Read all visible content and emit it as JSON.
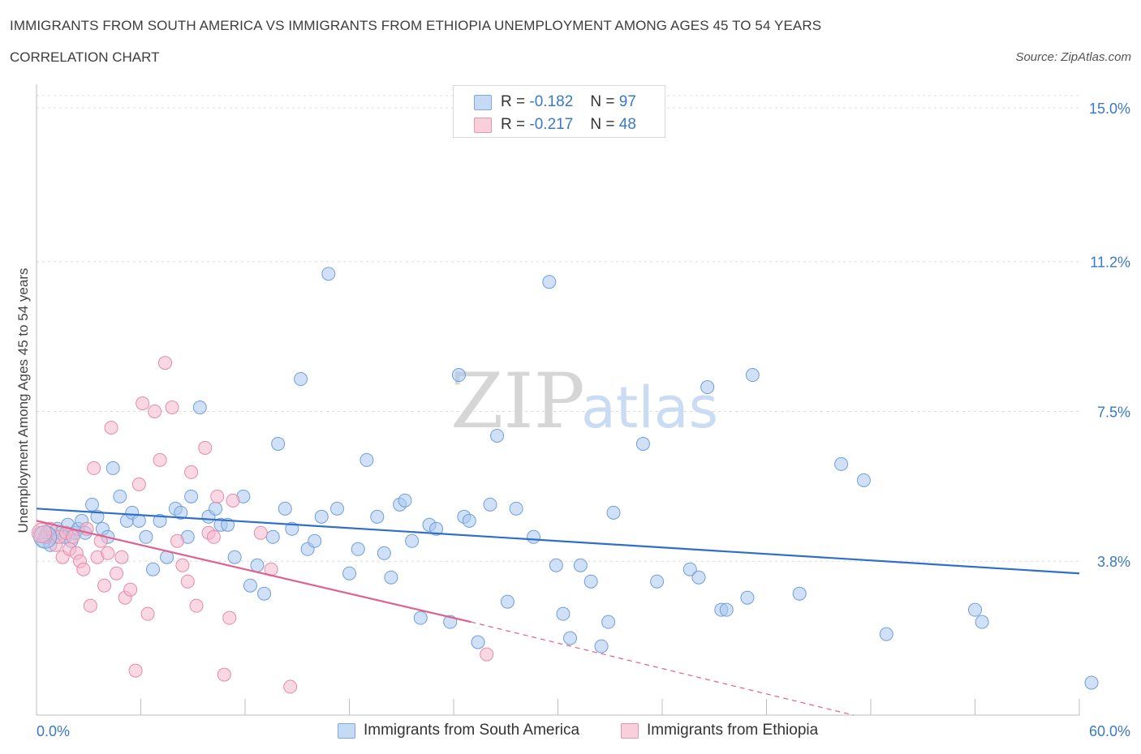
{
  "header": {
    "title": "IMMIGRANTS FROM SOUTH AMERICA VS IMMIGRANTS FROM ETHIOPIA UNEMPLOYMENT AMONG AGES 45 TO 54 YEARS",
    "subtitle": "CORRELATION CHART",
    "source": "Source: ZipAtlas.com"
  },
  "legend": {
    "rows": [
      {
        "r_label": "R =",
        "r_value": "-0.182",
        "n_label": "N =",
        "n_value": "97",
        "color": "#a9c8f0"
      },
      {
        "r_label": "R =",
        "r_value": "-0.217",
        "n_label": "N =",
        "n_value": "48",
        "color": "#f6b8cc"
      }
    ]
  },
  "bottom_legend": {
    "south_america": "Immigrants from South America",
    "ethiopia": "Immigrants from Ethiopia"
  },
  "chart_data": {
    "type": "scatter",
    "ylabel": "Unemployment Among Ages 45 to 54 years",
    "xlabel": "",
    "x_tick_labels": [
      "0.0%",
      "60.0%"
    ],
    "y_tick_labels": [
      "15.0%",
      "11.2%",
      "7.5%",
      "3.8%"
    ],
    "y_ticks": [
      15.0,
      11.2,
      7.5,
      3.8
    ],
    "xlim": [
      0,
      60
    ],
    "ylim": [
      0,
      15.3
    ],
    "grid": true,
    "legend_position": "top-center",
    "watermark": "ZIPatlas",
    "series": [
      {
        "name": "Immigrants from South America",
        "color": "#a9c8f0",
        "stroke": "#6f9fd8",
        "trend": {
          "x0": 0,
          "y0": 5.1,
          "x1": 60,
          "y1": 3.5,
          "color": "#2f6fcb"
        },
        "points": [
          [
            0.4,
            4.3
          ],
          [
            0.6,
            4.5
          ],
          [
            0.8,
            4.2
          ],
          [
            1.0,
            4.4
          ],
          [
            1.2,
            4.6
          ],
          [
            1.4,
            4.5
          ],
          [
            1.6,
            4.4
          ],
          [
            1.8,
            4.7
          ],
          [
            2.0,
            4.3
          ],
          [
            2.2,
            4.5
          ],
          [
            2.4,
            4.6
          ],
          [
            2.6,
            4.8
          ],
          [
            2.8,
            4.5
          ],
          [
            3.2,
            5.2
          ],
          [
            3.5,
            4.9
          ],
          [
            3.8,
            4.6
          ],
          [
            4.1,
            4.4
          ],
          [
            4.4,
            6.1
          ],
          [
            4.8,
            5.4
          ],
          [
            5.2,
            4.8
          ],
          [
            5.5,
            5.0
          ],
          [
            5.9,
            4.8
          ],
          [
            6.3,
            4.4
          ],
          [
            6.7,
            3.6
          ],
          [
            7.1,
            4.8
          ],
          [
            7.5,
            3.9
          ],
          [
            8.0,
            5.1
          ],
          [
            8.3,
            5.0
          ],
          [
            8.7,
            4.4
          ],
          [
            8.9,
            5.4
          ],
          [
            9.4,
            7.6
          ],
          [
            9.9,
            4.9
          ],
          [
            10.3,
            5.1
          ],
          [
            10.6,
            4.7
          ],
          [
            11.0,
            4.7
          ],
          [
            11.4,
            3.9
          ],
          [
            11.9,
            5.4
          ],
          [
            12.3,
            3.2
          ],
          [
            12.7,
            3.7
          ],
          [
            13.1,
            3.0
          ],
          [
            13.6,
            4.4
          ],
          [
            13.9,
            6.7
          ],
          [
            14.3,
            5.1
          ],
          [
            14.7,
            4.6
          ],
          [
            15.2,
            8.3
          ],
          [
            15.6,
            4.1
          ],
          [
            16.0,
            4.3
          ],
          [
            16.4,
            4.9
          ],
          [
            16.8,
            10.9
          ],
          [
            17.3,
            5.1
          ],
          [
            18.0,
            3.5
          ],
          [
            18.5,
            4.1
          ],
          [
            19.0,
            6.3
          ],
          [
            19.6,
            4.9
          ],
          [
            20.0,
            4.0
          ],
          [
            20.4,
            3.4
          ],
          [
            20.9,
            5.2
          ],
          [
            21.2,
            5.3
          ],
          [
            21.6,
            4.3
          ],
          [
            22.1,
            2.4
          ],
          [
            22.6,
            4.7
          ],
          [
            23.0,
            4.6
          ],
          [
            23.8,
            2.3
          ],
          [
            24.3,
            8.4
          ],
          [
            24.6,
            4.9
          ],
          [
            24.9,
            4.8
          ],
          [
            25.4,
            1.8
          ],
          [
            26.1,
            5.2
          ],
          [
            26.5,
            6.9
          ],
          [
            27.1,
            2.8
          ],
          [
            27.6,
            5.1
          ],
          [
            28.6,
            4.4
          ],
          [
            29.5,
            10.7
          ],
          [
            29.9,
            3.7
          ],
          [
            30.3,
            2.5
          ],
          [
            30.7,
            1.9
          ],
          [
            31.3,
            3.7
          ],
          [
            31.9,
            3.3
          ],
          [
            32.5,
            1.7
          ],
          [
            32.9,
            2.3
          ],
          [
            33.2,
            5.0
          ],
          [
            34.9,
            6.7
          ],
          [
            35.7,
            3.3
          ],
          [
            37.6,
            3.6
          ],
          [
            38.1,
            3.4
          ],
          [
            38.6,
            8.1
          ],
          [
            39.4,
            2.6
          ],
          [
            39.7,
            2.6
          ],
          [
            40.9,
            2.9
          ],
          [
            41.2,
            8.4
          ],
          [
            43.9,
            3.0
          ],
          [
            46.3,
            6.2
          ],
          [
            47.6,
            5.8
          ],
          [
            48.9,
            2.0
          ],
          [
            54.0,
            2.6
          ],
          [
            54.4,
            2.3
          ],
          [
            60.7,
            0.8
          ]
        ]
      },
      {
        "name": "Immigrants from Ethiopia",
        "color": "#f6b8cc",
        "stroke": "#e58aa8",
        "trend": {
          "x0": 0,
          "y0": 4.8,
          "x1": 25,
          "y1": 2.3,
          "color": "#e0608e"
        },
        "trend_dashed": {
          "x0": 25,
          "y0": 2.3,
          "x1": 47,
          "y1": 0.0
        },
        "points": [
          [
            0.2,
            4.5
          ],
          [
            0.5,
            4.4
          ],
          [
            0.8,
            4.6
          ],
          [
            1.1,
            4.2
          ],
          [
            1.3,
            4.4
          ],
          [
            1.5,
            3.9
          ],
          [
            1.7,
            4.5
          ],
          [
            1.9,
            4.1
          ],
          [
            2.1,
            4.4
          ],
          [
            2.3,
            4.0
          ],
          [
            2.5,
            3.8
          ],
          [
            2.7,
            3.6
          ],
          [
            2.9,
            4.6
          ],
          [
            3.1,
            2.7
          ],
          [
            3.3,
            6.1
          ],
          [
            3.5,
            3.9
          ],
          [
            3.7,
            4.3
          ],
          [
            3.9,
            3.2
          ],
          [
            4.1,
            4.0
          ],
          [
            4.3,
            7.1
          ],
          [
            4.6,
            3.5
          ],
          [
            4.9,
            3.9
          ],
          [
            5.1,
            2.9
          ],
          [
            5.4,
            3.1
          ],
          [
            5.7,
            1.1
          ],
          [
            5.9,
            5.7
          ],
          [
            6.1,
            7.7
          ],
          [
            6.4,
            2.5
          ],
          [
            6.8,
            7.5
          ],
          [
            7.1,
            6.3
          ],
          [
            7.4,
            8.7
          ],
          [
            7.8,
            7.6
          ],
          [
            8.1,
            4.3
          ],
          [
            8.4,
            3.7
          ],
          [
            8.7,
            3.3
          ],
          [
            8.9,
            6.0
          ],
          [
            9.2,
            2.7
          ],
          [
            9.7,
            6.6
          ],
          [
            9.9,
            4.5
          ],
          [
            10.2,
            4.4
          ],
          [
            10.4,
            5.4
          ],
          [
            10.8,
            1.0
          ],
          [
            11.1,
            2.4
          ],
          [
            11.3,
            5.3
          ],
          [
            12.9,
            4.5
          ],
          [
            13.5,
            3.6
          ],
          [
            14.6,
            0.7
          ],
          [
            25.9,
            1.5
          ]
        ]
      }
    ]
  }
}
